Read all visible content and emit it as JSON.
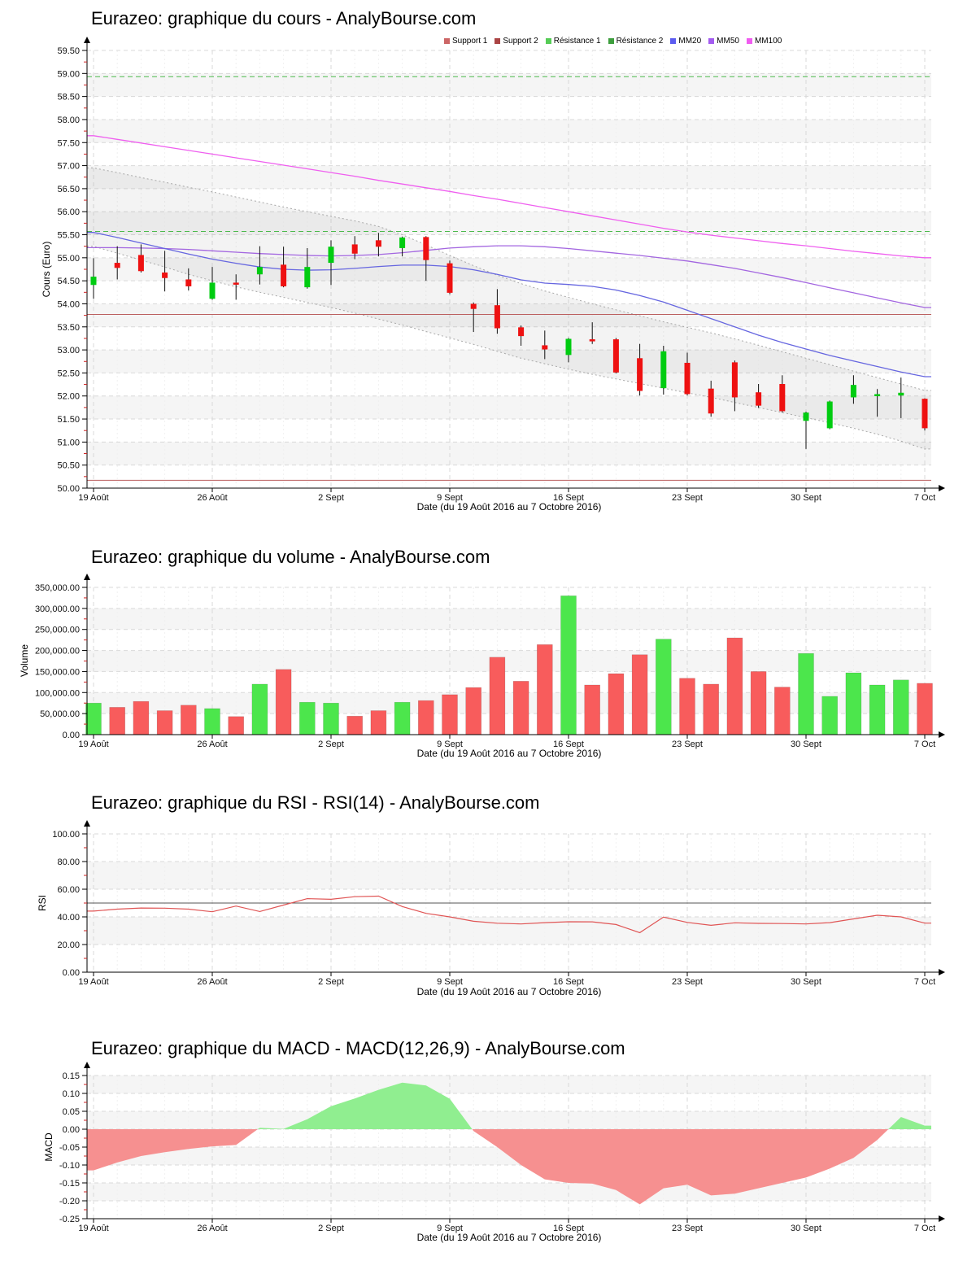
{
  "x_axis": {
    "title": "Date (du 19 Août 2016 au 7 Octobre 2016)",
    "tick_labels": [
      "19 Août",
      "26 Août",
      "2 Sept",
      "9 Sept",
      "16 Sept",
      "23 Sept",
      "30 Sept",
      "7 Oct"
    ]
  },
  "chart_data": [
    {
      "id": "price",
      "type": "candlestick",
      "title": "Eurazeo: graphique du cours - AnalyBourse.com",
      "ylabel": "Cours (Euro)",
      "ylim": [
        50.0,
        59.5
      ],
      "yticks": [
        59.5,
        59.0,
        58.5,
        58.0,
        57.5,
        57.0,
        56.5,
        56.0,
        55.5,
        55.0,
        54.5,
        54.0,
        53.5,
        53.0,
        52.5,
        52.0,
        51.5,
        51.0,
        50.5,
        50.0
      ],
      "ytick_labels": [
        "59.50",
        "59.00",
        "58.50",
        "58.00",
        "57.50",
        "57.00",
        "56.50",
        "56.00",
        "55.50",
        "55.00",
        "54.50",
        "54.00",
        "53.50",
        "53.00",
        "52.50",
        "52.00",
        "51.50",
        "51.00",
        "50.50",
        "50.00"
      ],
      "legend": [
        {
          "label": "Support 1",
          "color": "#cc6666"
        },
        {
          "label": "Support 2",
          "color": "#aa4444"
        },
        {
          "label": "Résistance 1",
          "color": "#55cc55"
        },
        {
          "label": "Résistance 2",
          "color": "#3d9e3d"
        },
        {
          "label": "MM20",
          "color": "#5c5cf0"
        },
        {
          "label": "MM50",
          "color": "#a35cf0"
        },
        {
          "label": "MM100",
          "color": "#f05cf0"
        }
      ],
      "support1": 53.77,
      "support2": 50.17,
      "resistance1": 55.57,
      "resistance2": 58.93,
      "candles": [
        [
          54.41,
          54.99,
          54.11,
          54.59
        ],
        [
          54.89,
          55.25,
          54.53,
          54.78
        ],
        [
          55.06,
          55.29,
          54.68,
          54.71
        ],
        [
          54.68,
          55.15,
          54.27,
          54.56
        ],
        [
          54.53,
          54.77,
          54.29,
          54.38
        ],
        [
          54.11,
          54.8,
          54.09,
          54.46
        ],
        [
          54.46,
          54.64,
          54.09,
          54.42
        ],
        [
          54.64,
          55.25,
          54.42,
          54.8
        ],
        [
          54.85,
          55.24,
          54.36,
          54.38
        ],
        [
          54.36,
          55.21,
          54.33,
          54.8
        ],
        [
          54.89,
          55.38,
          54.41,
          55.24
        ],
        [
          55.29,
          55.47,
          54.97,
          55.09
        ],
        [
          55.38,
          55.54,
          55.03,
          55.24
        ],
        [
          55.21,
          55.46,
          55.03,
          55.44
        ],
        [
          55.45,
          55.47,
          54.5,
          54.95
        ],
        [
          54.88,
          54.94,
          54.21,
          54.24
        ],
        [
          54.0,
          54.03,
          53.39,
          53.89
        ],
        [
          53.97,
          54.32,
          53.35,
          53.47
        ],
        [
          53.49,
          53.53,
          53.09,
          53.3
        ],
        [
          53.1,
          53.42,
          52.8,
          53.01
        ],
        [
          52.89,
          53.26,
          52.73,
          53.24
        ],
        [
          53.23,
          53.6,
          53.13,
          53.19
        ],
        [
          53.23,
          53.26,
          52.49,
          52.51
        ],
        [
          52.82,
          53.13,
          52.01,
          52.11
        ],
        [
          52.17,
          53.09,
          52.03,
          52.97
        ],
        [
          52.72,
          52.94,
          52.01,
          52.04
        ],
        [
          52.16,
          52.33,
          51.55,
          51.62
        ],
        [
          52.73,
          52.77,
          51.67,
          51.97
        ],
        [
          52.08,
          52.26,
          51.74,
          51.79
        ],
        [
          52.26,
          52.45,
          51.64,
          51.67
        ],
        [
          51.46,
          51.66,
          50.85,
          51.64
        ],
        [
          51.3,
          51.9,
          51.28,
          51.88
        ],
        [
          51.97,
          52.45,
          51.83,
          52.24
        ],
        [
          52.0,
          52.15,
          51.55,
          52.04
        ],
        [
          52.01,
          52.4,
          51.52,
          52.07
        ],
        [
          51.94,
          51.95,
          51.25,
          51.3
        ]
      ],
      "mm20": [
        55.55,
        55.44,
        55.32,
        55.2,
        55.08,
        54.97,
        54.88,
        54.8,
        54.75,
        54.73,
        54.74,
        54.77,
        54.81,
        54.84,
        54.84,
        54.81,
        54.74,
        54.64,
        54.52,
        54.45,
        54.42,
        54.38,
        54.3,
        54.18,
        54.04,
        53.86,
        53.68,
        53.5,
        53.32,
        53.16,
        53.02,
        52.88,
        52.76,
        52.64,
        52.52,
        52.42
      ],
      "mm50": [
        55.22,
        55.22,
        55.21,
        55.2,
        55.18,
        55.15,
        55.12,
        55.09,
        55.07,
        55.05,
        55.04,
        55.05,
        55.07,
        55.11,
        55.16,
        55.21,
        55.24,
        55.26,
        55.26,
        55.24,
        55.2,
        55.15,
        55.1,
        55.05,
        54.99,
        54.93,
        54.85,
        54.77,
        54.67,
        54.57,
        54.46,
        54.35,
        54.24,
        54.13,
        54.02,
        53.92
      ],
      "mm100": [
        57.65,
        57.57,
        57.49,
        57.41,
        57.33,
        57.25,
        57.17,
        57.09,
        57.01,
        56.93,
        56.85,
        56.77,
        56.68,
        56.6,
        56.52,
        56.44,
        56.35,
        56.27,
        56.18,
        56.09,
        56.0,
        55.91,
        55.82,
        55.73,
        55.64,
        55.56,
        55.49,
        55.43,
        55.37,
        55.31,
        55.26,
        55.2,
        55.14,
        55.09,
        55.04,
        55.0
      ],
      "band_upper": [
        56.95,
        56.85,
        56.74,
        56.64,
        56.53,
        56.43,
        56.32,
        56.21,
        56.1,
        56.0,
        55.9,
        55.8,
        55.68,
        55.5,
        55.28,
        55.05,
        54.83,
        54.62,
        54.44,
        54.28,
        54.14,
        54.0,
        53.87,
        53.74,
        53.61,
        53.49,
        53.37,
        53.24,
        53.1,
        52.96,
        52.82,
        52.68,
        52.54,
        52.4,
        52.26,
        52.12
      ],
      "band_lower": [
        55.25,
        55.1,
        54.95,
        54.8,
        54.64,
        54.5,
        54.37,
        54.25,
        54.14,
        54.03,
        53.92,
        53.8,
        53.67,
        53.54,
        53.4,
        53.26,
        53.12,
        52.97,
        52.82,
        52.7,
        52.58,
        52.47,
        52.37,
        52.27,
        52.17,
        52.07,
        51.97,
        51.86,
        51.75,
        51.64,
        51.53,
        51.42,
        51.3,
        51.17,
        51.02,
        50.85
      ],
      "colors": {
        "up": "#00cc11",
        "down": "#ee1111",
        "mm20": "#6666e0",
        "mm50": "#a366e0",
        "mm100": "#ef5fef",
        "support": "#bb5f5f",
        "resistance": "#4cba4c"
      }
    },
    {
      "id": "volume",
      "type": "bar",
      "title": "Eurazeo: graphique du volume - AnalyBourse.com",
      "ylabel": "Volume",
      "ylim": [
        0,
        350000
      ],
      "yticks": [
        350000,
        300000,
        250000,
        200000,
        150000,
        100000,
        50000,
        0
      ],
      "ytick_labels": [
        "350,000.00",
        "300,000.00",
        "250,000.00",
        "200,000.00",
        "150,000.00",
        "100,000.00",
        "50,000.00",
        "0.00"
      ],
      "values": [
        75000,
        65000,
        79000,
        57000,
        70000,
        62000,
        43000,
        120000,
        155000,
        77000,
        75000,
        44000,
        57000,
        77000,
        81000,
        95000,
        112000,
        184000,
        127000,
        214000,
        330000,
        118000,
        145000,
        190000,
        227000,
        134000,
        120000,
        230000,
        150000,
        113000,
        193000,
        91000,
        147000,
        118000,
        130000,
        122000
      ],
      "colors": {
        "up": "#4ce64c",
        "down": "#f85c5c"
      }
    },
    {
      "id": "rsi",
      "type": "line",
      "title": "Eurazeo: graphique du RSI - RSI(14) - AnalyBourse.com",
      "ylabel": "RSI",
      "ylim": [
        0,
        100
      ],
      "yticks": [
        100,
        80,
        60,
        40,
        20,
        0
      ],
      "ytick_labels": [
        "100.00",
        "80.00",
        "60.00",
        "40.00",
        "20.00",
        "0.00"
      ],
      "midline": 50,
      "values": [
        44.2,
        45.6,
        46.4,
        46.3,
        45.6,
        43.7,
        47.8,
        43.9,
        48.5,
        53.2,
        52.7,
        54.6,
        55.0,
        47.5,
        42.5,
        40.0,
        36.8,
        35.4,
        34.9,
        35.8,
        36.5,
        36.4,
        34.5,
        28.6,
        39.8,
        36.0,
        33.9,
        35.7,
        35.3,
        35.2,
        34.9,
        35.8,
        38.5,
        41.2,
        40.0,
        35.5
      ],
      "colors": {
        "line": "#e05555",
        "midline": "#555555"
      }
    },
    {
      "id": "macd",
      "type": "area",
      "title": "Eurazeo: graphique du MACD - MACD(12,26,9) - AnalyBourse.com",
      "ylabel": "MACD",
      "ylim": [
        -0.25,
        0.15
      ],
      "yticks": [
        0.15,
        0.1,
        0.05,
        0.0,
        -0.05,
        -0.1,
        -0.15,
        -0.2,
        -0.25
      ],
      "ytick_labels": [
        "0.15",
        "0.10",
        "0.05",
        "0.00",
        "-0.05",
        "-0.10",
        "-0.15",
        "-0.20",
        "-0.25"
      ],
      "values": [
        -0.115,
        -0.093,
        -0.075,
        -0.064,
        -0.055,
        -0.048,
        -0.044,
        0.004,
        0.001,
        0.028,
        0.064,
        0.086,
        0.11,
        0.13,
        0.122,
        0.085,
        -0.005,
        -0.05,
        -0.1,
        -0.14,
        -0.15,
        -0.152,
        -0.17,
        -0.21,
        -0.165,
        -0.155,
        -0.185,
        -0.18,
        -0.165,
        -0.15,
        -0.135,
        -0.11,
        -0.08,
        -0.03,
        0.034,
        0.01
      ],
      "colors": {
        "pos": "#90ee90",
        "neg": "#f69090"
      }
    }
  ]
}
